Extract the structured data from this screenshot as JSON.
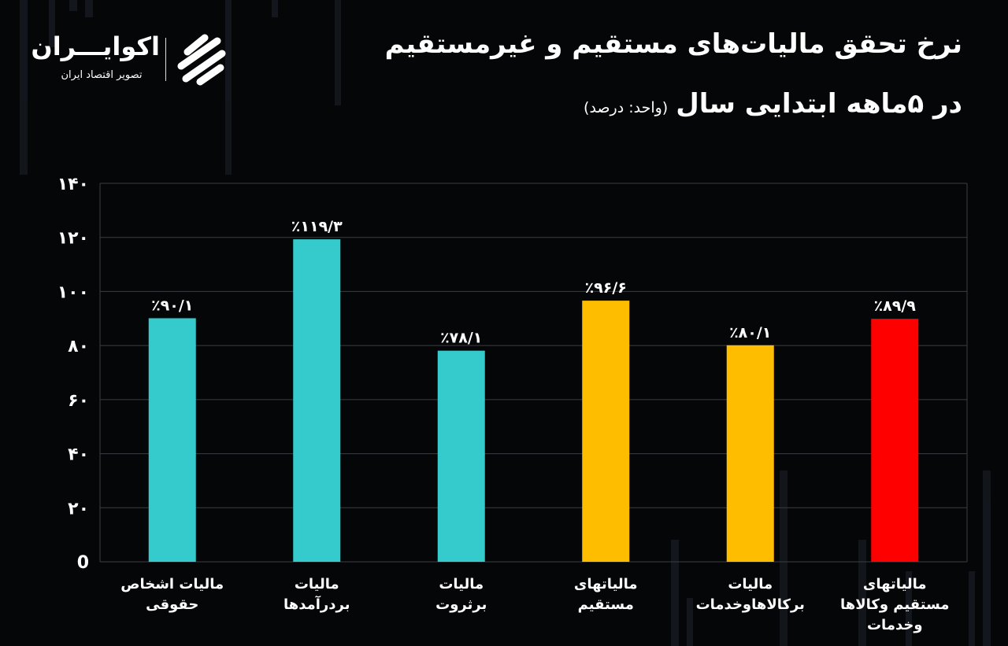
{
  "logo": {
    "name": "اکوایـــران",
    "tagline": "تصویر اقتصاد ایران"
  },
  "title": {
    "line1": "نرخ تحقق مالیات‌های مستقیم و غیرمستقیم",
    "line2": "در ۵ماهه ابتدایی سال",
    "unit": "(واحد: درصد)"
  },
  "colors": {
    "teal": "#35CBCD",
    "yellow": "#FFBD00",
    "red": "#FF0000",
    "grid": "#3a3d42",
    "background": "#050608"
  },
  "chart_data": {
    "type": "bar",
    "title": "نرخ تحقق مالیات‌های مستقیم و غیرمستقیم در ۵ماهه ابتدایی سال",
    "ylabel": "درصد",
    "ylim": [
      0,
      140
    ],
    "yticks": [
      0,
      20,
      40,
      60,
      80,
      100,
      120,
      140
    ],
    "ytick_labels": [
      "0",
      "۲۰",
      "۴۰",
      "۶۰",
      "۸۰",
      "۱۰۰",
      "۱۲۰",
      "۱۴۰"
    ],
    "grid": true,
    "categories": [
      [
        "مالیات اشخاص",
        "حقوقی"
      ],
      [
        "مالیات",
        "بردرآمدها"
      ],
      [
        "مالیات",
        "برثروت"
      ],
      [
        "مالیاتهای",
        "مستقیم"
      ],
      [
        "مالیات",
        "برکالاهاوخدمات"
      ],
      [
        "مالیاتهای",
        "مستقیم وکالاها",
        "وخدمات"
      ]
    ],
    "values": [
      90.1,
      119.3,
      78.1,
      96.6,
      80.1,
      89.9
    ],
    "value_labels": [
      "٪۹۰/۱",
      "٪۱۱۹/۳",
      "٪۷۸/۱",
      "٪۹۶/۶",
      "٪۸۰/۱",
      "٪۸۹/۹"
    ],
    "bar_colors": [
      "teal",
      "teal",
      "teal",
      "yellow",
      "yellow",
      "red"
    ]
  }
}
